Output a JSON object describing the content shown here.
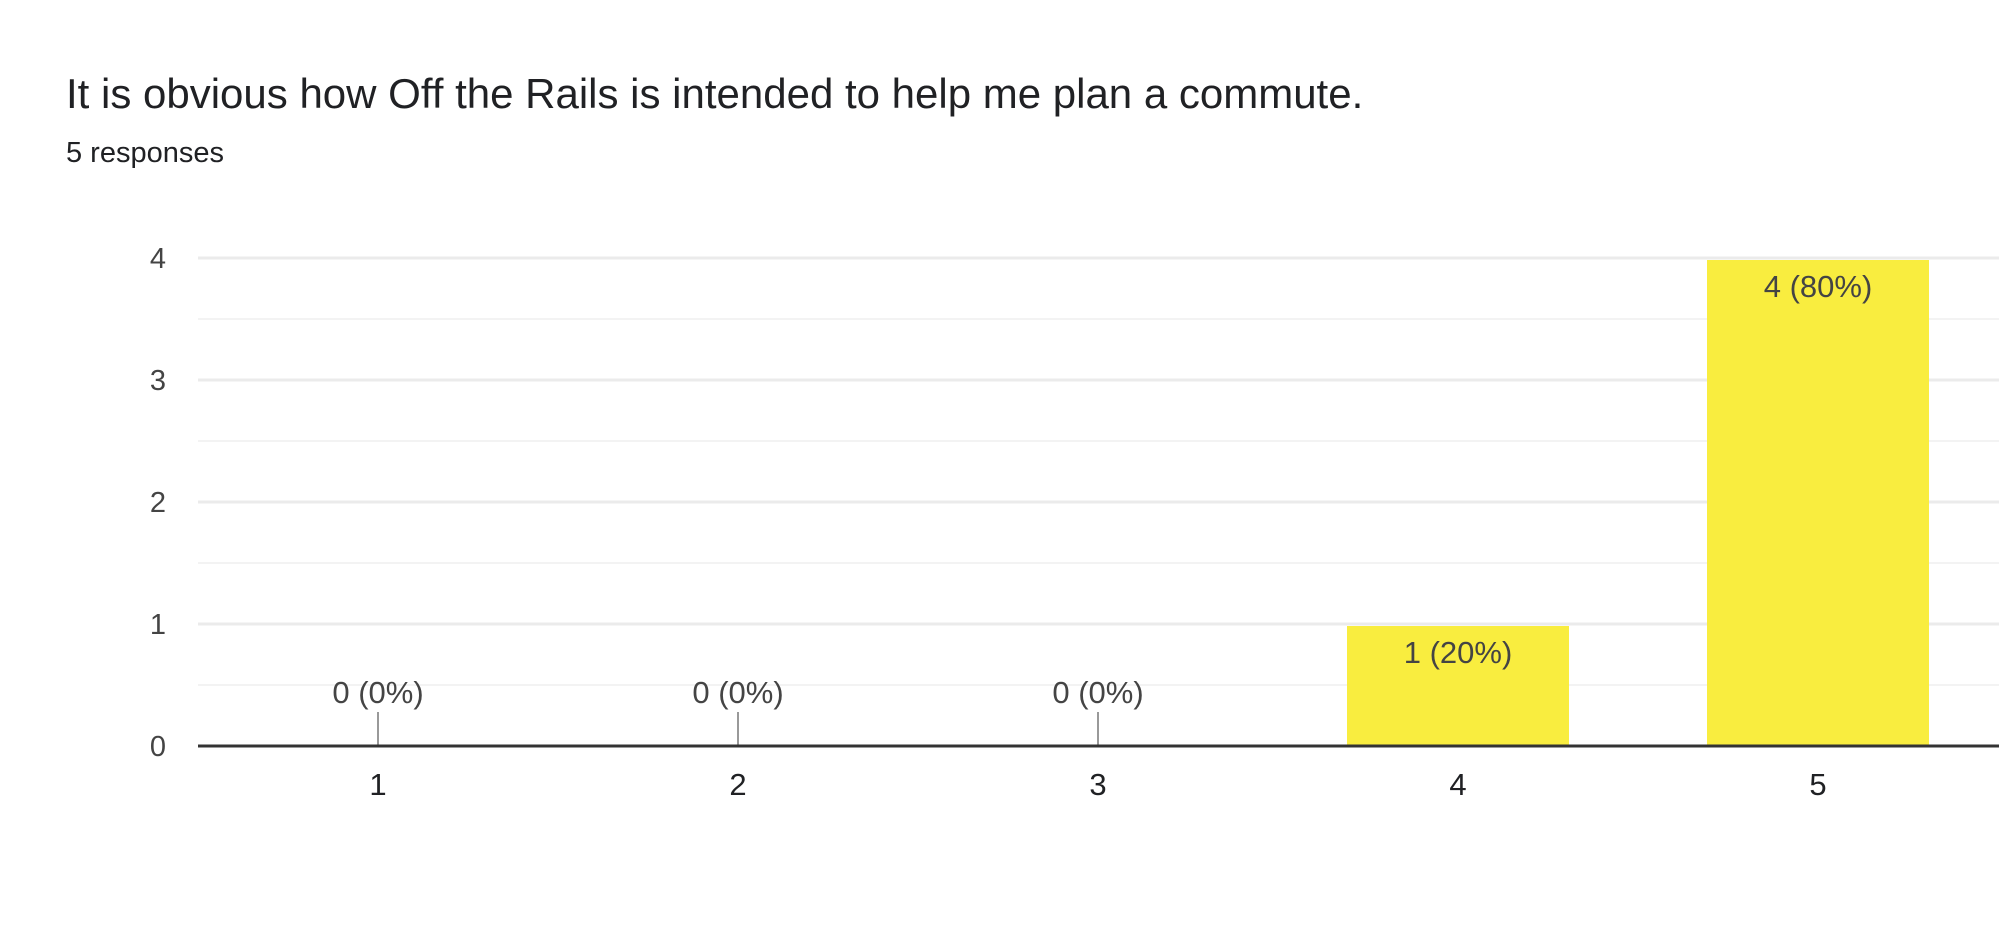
{
  "question": {
    "title": "It is obvious how Off the Rails is intended to help me plan a commute.",
    "response_count": "5 responses"
  },
  "colors": {
    "bar": "#f9ed3f",
    "text": "#202124",
    "axis_label": "#444444",
    "gridline": "#ebebeb",
    "minor_gridline": "#f3f3f3",
    "baseline": "#333333",
    "zero_stub": "#999999"
  },
  "chart_data": {
    "type": "bar",
    "categories": [
      "1",
      "2",
      "3",
      "4",
      "5"
    ],
    "values": [
      0,
      0,
      0,
      1,
      4
    ],
    "data_labels": [
      "0 (0%)",
      "0 (0%)",
      "0 (0%)",
      "1 (20%)",
      "4 (80%)"
    ],
    "y_ticks": [
      "0",
      "1",
      "2",
      "3",
      "4"
    ],
    "ylim": [
      0,
      4
    ],
    "grid": true,
    "legend": "none"
  }
}
